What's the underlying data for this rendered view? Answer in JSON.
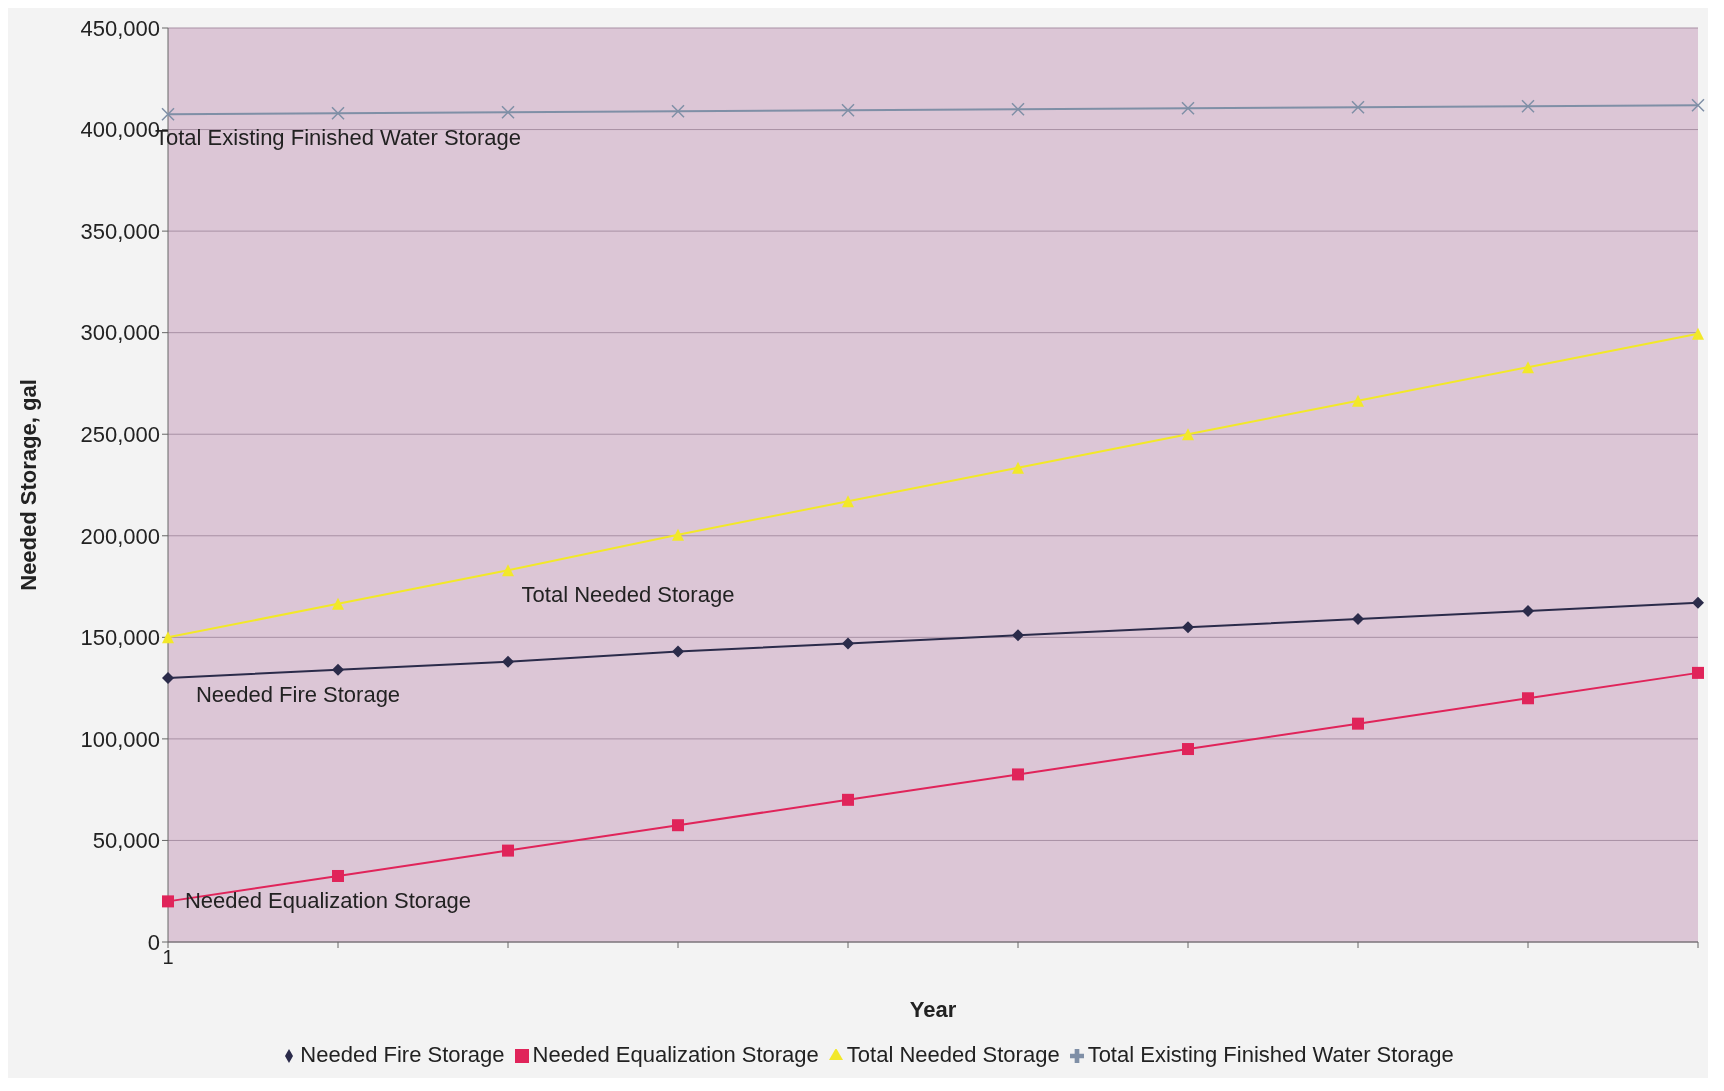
{
  "chart_data": {
    "type": "line",
    "xlabel": "Year",
    "ylabel": "Needed Storage, gal",
    "categories": [
      "1",
      null,
      null,
      null,
      null,
      null,
      null,
      null,
      null,
      null
    ],
    "series": [
      {
        "name": "Needed Fire Storage",
        "color": "#2b2b4a",
        "marker": "diamond",
        "values": [
          130000,
          134000,
          138000,
          143000,
          147000,
          151000,
          155000,
          159000,
          163000,
          167000
        ]
      },
      {
        "name": "Needed Equalization Storage",
        "color": "#e0245a",
        "marker": "square",
        "values": [
          20000,
          32500,
          45000,
          57500,
          70000,
          82500,
          95000,
          107500,
          120000,
          132500
        ]
      },
      {
        "name": "Total Needed Storage",
        "color": "#f2e829",
        "marker": "triangle",
        "values": [
          150000,
          166500,
          183000,
          200500,
          217000,
          233500,
          250000,
          266500,
          283000,
          299500
        ]
      },
      {
        "name": "Total Existing Finished Water Storage",
        "color": "#7f8fa6",
        "marker": "cross",
        "values": [
          407500,
          408000,
          408500,
          409000,
          409500,
          410000,
          410500,
          411000,
          411500,
          412000
        ]
      }
    ],
    "ylim": [
      0,
      450000
    ],
    "yticks": [
      0,
      {
        "value": 50000,
        "label": "50,000"
      },
      {
        "value": 100000,
        "label": "100,000"
      },
      {
        "value": 150000,
        "label": "150,000"
      },
      {
        "value": 200000,
        "label": "200,000"
      },
      {
        "value": 250000,
        "label": "250,000"
      },
      {
        "value": 300000,
        "label": "300,000"
      },
      {
        "value": 350000,
        "label": "350,000"
      },
      {
        "value": 400000,
        "label": "400,000"
      },
      {
        "value": 450000,
        "label": "450,000"
      }
    ],
    "grid": "y",
    "legend": "bottom",
    "line_style": "solid"
  }
}
